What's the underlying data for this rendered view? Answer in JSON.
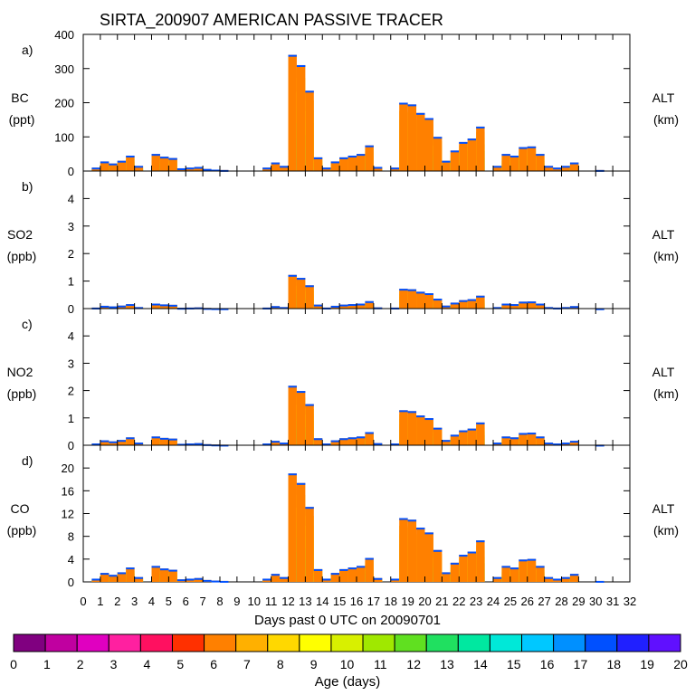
{
  "chart_data": {
    "type": "area",
    "title": "SIRTA_200907 AMERICAN PASSIVE TRACER",
    "xlabel": "Days past 0 UTC on 20090701",
    "xlim": [
      0,
      32
    ],
    "x_ticks": [
      "0",
      "1",
      "2",
      "3",
      "4",
      "5",
      "6",
      "7",
      "8",
      "9",
      "10",
      "11",
      "12",
      "13",
      "14",
      "15",
      "16",
      "17",
      "18",
      "19",
      "20",
      "21",
      "22",
      "23",
      "24",
      "25",
      "26",
      "27",
      "28",
      "29",
      "30",
      "31",
      "32"
    ],
    "right_label": [
      "ALT",
      "(km)"
    ],
    "age_days": [
      0,
      0.5,
      1,
      1.5,
      2,
      2.5,
      3,
      3.5,
      4,
      4.5,
      5,
      5.5,
      6,
      6.5,
      7,
      7.5,
      8,
      8.5,
      9,
      9.5,
      10,
      10.5,
      11,
      11.5,
      12,
      12.5,
      13,
      13.5,
      14,
      14.5,
      15,
      15.5,
      16,
      16.5,
      17,
      17.5,
      18,
      18.5,
      19,
      19.5,
      20,
      20.5,
      21,
      21.5,
      22,
      22.5,
      23,
      23.5,
      24,
      24.5,
      25,
      25.5,
      26,
      26.5,
      27,
      27.5,
      28,
      28.5,
      29,
      29.5,
      30,
      30.5,
      31,
      31.5,
      32
    ],
    "bc_profile": [
      0,
      10,
      28,
      22,
      30,
      45,
      15,
      0,
      50,
      42,
      38,
      8,
      10,
      12,
      6,
      4,
      3,
      0,
      0,
      0,
      0,
      10,
      25,
      15,
      340,
      310,
      235,
      40,
      10,
      28,
      40,
      45,
      50,
      75,
      12,
      0,
      10,
      200,
      195,
      170,
      155,
      100,
      30,
      60,
      85,
      95,
      130,
      0,
      15,
      50,
      45,
      70,
      72,
      50,
      15,
      10,
      15,
      25,
      0,
      0,
      3,
      0,
      0,
      0,
      0
    ],
    "panels": [
      {
        "letter": "a)",
        "species": "BC",
        "unit": "(ppt)",
        "ylim": [
          0,
          400
        ],
        "yticks": [
          0,
          100,
          200,
          300,
          400
        ],
        "scale": 1
      },
      {
        "letter": "b)",
        "species": "SO2",
        "unit": "(ppb)",
        "ylim": [
          0,
          5
        ],
        "yticks": [
          0,
          1,
          2,
          3,
          4
        ],
        "scale": 0.0036
      },
      {
        "letter": "c)",
        "species": "NO2",
        "unit": "(ppb)",
        "ylim": [
          0,
          5
        ],
        "yticks": [
          0,
          1,
          2,
          3,
          4
        ],
        "scale": 0.0064
      },
      {
        "letter": "d)",
        "species": "CO",
        "unit": "(ppb)",
        "ylim": [
          0,
          24
        ],
        "yticks": [
          0,
          4,
          8,
          12,
          16,
          20
        ],
        "scale": 0.056
      }
    ],
    "colorbar": {
      "label": "Age (days)",
      "ticks": [
        "0",
        "1",
        "2",
        "3",
        "4",
        "5",
        "6",
        "7",
        "8",
        "9",
        "10",
        "11",
        "12",
        "13",
        "14",
        "15",
        "16",
        "17",
        "18",
        "19",
        "20"
      ],
      "colors": [
        "#800080",
        "#c000a0",
        "#e000c0",
        "#ff20a0",
        "#ff1060",
        "#ff3000",
        "#ff8000",
        "#ffb000",
        "#ffd800",
        "#ffff00",
        "#d8f000",
        "#a0e800",
        "#60e020",
        "#20e060",
        "#00e8a0",
        "#00e8d8",
        "#00c8ff",
        "#0090ff",
        "#0050ff",
        "#2020ff",
        "#6010ff"
      ]
    }
  }
}
